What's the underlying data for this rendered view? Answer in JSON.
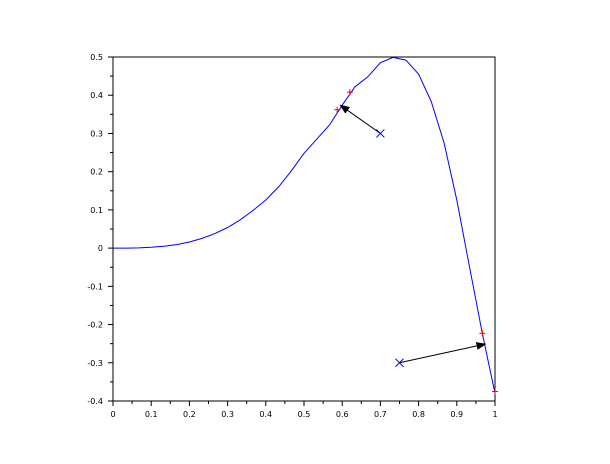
{
  "chart_data": {
    "type": "line",
    "title": "",
    "xlabel": "",
    "ylabel": "",
    "xlim": [
      0,
      1
    ],
    "ylim": [
      -0.4,
      0.5
    ],
    "grid": false,
    "x_ticks": [
      "0",
      "0.1",
      "0.2",
      "0.3",
      "0.4",
      "0.5",
      "0.6",
      "0.7",
      "0.8",
      "0.9",
      "1"
    ],
    "y_ticks": [
      "-0.4",
      "-0.3",
      "-0.2",
      "-0.1",
      "0",
      "0.1",
      "0.2",
      "0.3",
      "0.4",
      "0.5"
    ],
    "series": [
      {
        "color": "#0000ff",
        "x": [
          0,
          0.0333,
          0.0667,
          0.1,
          0.1333,
          0.1667,
          0.2,
          0.2333,
          0.2667,
          0.3,
          0.3333,
          0.3667,
          0.4,
          0.4333,
          0.4667,
          0.5,
          0.5333,
          0.5667,
          0.6,
          0.6333,
          0.6667,
          0.7,
          0.7333,
          0.7667,
          0.8,
          0.8333,
          0.8667,
          0.9,
          0.9333,
          0.9667,
          1
        ],
        "y": [
          0,
          0.0001,
          0.0006,
          0.002,
          0.0047,
          0.0093,
          0.016,
          0.0254,
          0.0379,
          0.054,
          0.074,
          0.0986,
          0.126,
          0.16,
          0.202,
          0.248,
          0.285,
          0.322,
          0.374,
          0.422,
          0.448,
          0.485,
          0.499,
          0.492,
          0.455,
          0.383,
          0.275,
          0.126,
          -0.049,
          -0.223,
          -0.38
        ]
      }
    ],
    "red_markers": {
      "color": "#ff0000",
      "points": [
        [
          0.587,
          0.362
        ],
        [
          0.62,
          0.408
        ],
        [
          0.967,
          -0.223
        ],
        [
          1,
          -0.375
        ]
      ]
    },
    "blue_crosses": {
      "color": "#0000ff",
      "points": [
        [
          0.7,
          0.3
        ],
        [
          0.75,
          -0.3
        ]
      ]
    },
    "arrows": [
      {
        "from": [
          0.7,
          0.3
        ],
        "to": [
          0.595,
          0.374
        ]
      },
      {
        "from": [
          0.75,
          -0.3
        ],
        "to": [
          0.975,
          -0.251
        ]
      }
    ]
  }
}
